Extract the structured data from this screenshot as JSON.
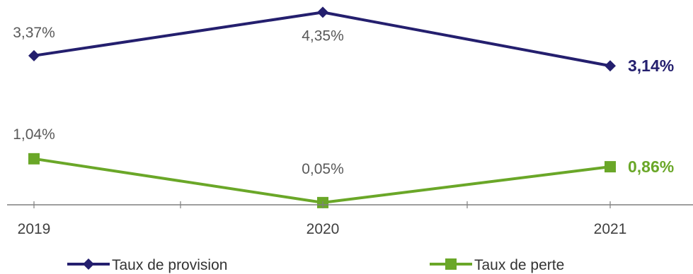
{
  "chart_data": {
    "type": "line",
    "title": "",
    "xlabel": "",
    "ylabel": "",
    "categories": [
      "2019",
      "2020",
      "2021"
    ],
    "ylim": [
      0,
      4.5
    ],
    "grid": false,
    "legend_position": "bottom",
    "series": [
      {
        "name": "Taux de provision",
        "values": [
          3.37,
          4.35,
          3.14
        ],
        "labels": [
          "3,37%",
          "4,35%",
          "3,14%"
        ],
        "color": "#241f6e",
        "marker": "diamond"
      },
      {
        "name": "Taux de perte",
        "values": [
          1.04,
          0.05,
          0.86
        ],
        "labels": [
          "1,04%",
          "0,05%",
          "0,86%"
        ],
        "color": "#6aa728",
        "marker": "square"
      }
    ]
  },
  "colors": {
    "axis": "#7f7f7f",
    "label_gray": "#595959",
    "provision_series": "#241f6e",
    "perte_series": "#6aa728"
  }
}
